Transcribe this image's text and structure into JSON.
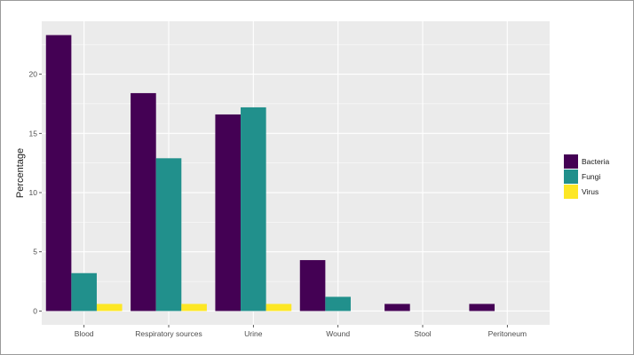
{
  "chart_data": {
    "type": "bar",
    "title": "",
    "xlabel": "",
    "ylabel": "Percentage",
    "categories": [
      "Blood",
      "Respiratory sources",
      "Urine",
      "Wound",
      "Stool",
      "Peritoneum"
    ],
    "series": [
      {
        "name": "Bacteria",
        "color": "#440154",
        "values": [
          23.3,
          18.4,
          16.6,
          4.3,
          0.6,
          0.6
        ]
      },
      {
        "name": "Fungi",
        "color": "#21908C",
        "values": [
          3.2,
          12.9,
          17.2,
          1.2,
          0,
          0
        ]
      },
      {
        "name": "Virus",
        "color": "#FDE725",
        "values": [
          0.6,
          0.6,
          0.6,
          0,
          0,
          0
        ]
      }
    ],
    "ylim": [
      -1.165,
      24.465
    ],
    "yticks": [
      0,
      5,
      10,
      15,
      20
    ],
    "grid": true,
    "legend_position": "right",
    "panel_color": "#EBEBEB"
  }
}
